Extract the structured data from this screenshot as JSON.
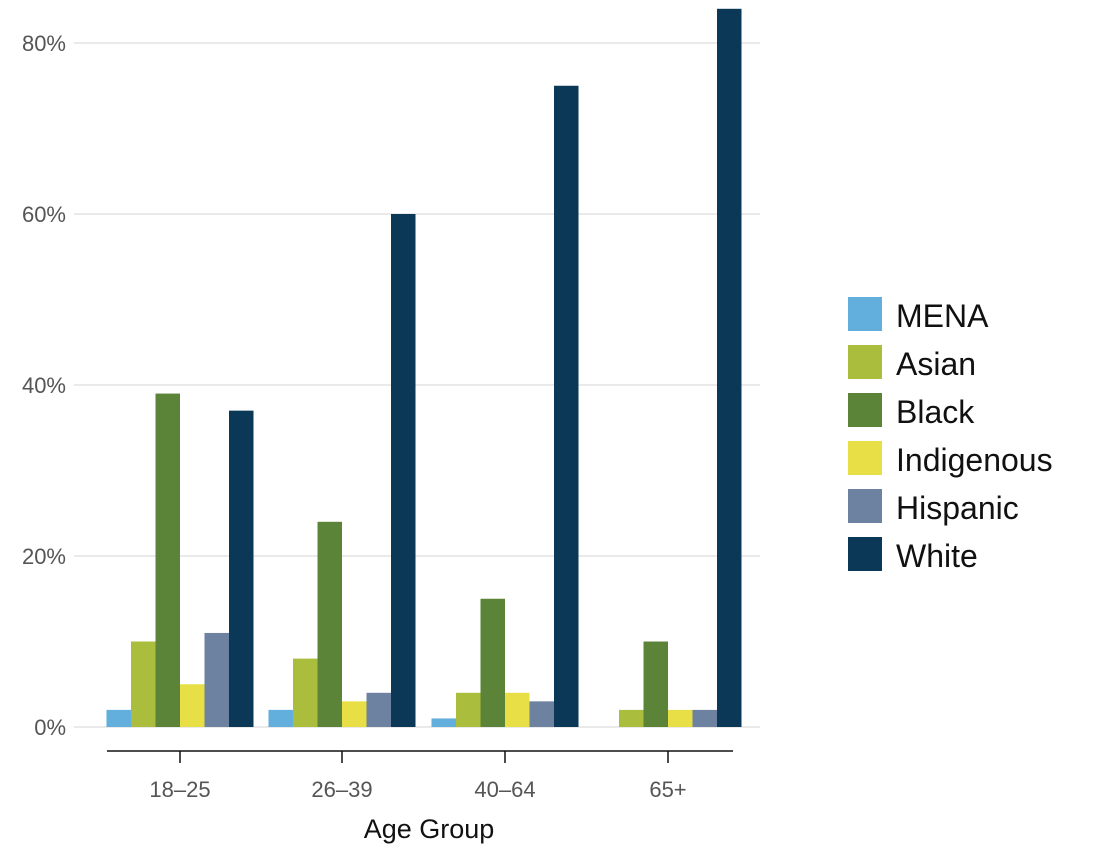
{
  "chart_data": {
    "type": "bar",
    "title": "",
    "xlabel": "Age Group",
    "ylabel": "",
    "categories": [
      "18–25",
      "26–39",
      "40–64",
      "65+"
    ],
    "y_ticks": [
      0,
      20,
      40,
      60,
      80
    ],
    "y_tick_labels": [
      "0%",
      "20%",
      "40%",
      "60%",
      "80%"
    ],
    "ylim": [
      0,
      84
    ],
    "grid": "horizontal",
    "legend_position": "right",
    "series": [
      {
        "name": "MENA",
        "color": "#62aedc",
        "values": [
          2,
          2,
          1,
          0
        ]
      },
      {
        "name": "Asian",
        "color": "#aabd3c",
        "values": [
          10,
          8,
          4,
          2
        ]
      },
      {
        "name": "Black",
        "color": "#5c8438",
        "values": [
          39,
          24,
          15,
          10
        ]
      },
      {
        "name": "Indigenous",
        "color": "#e7df45",
        "values": [
          5,
          3,
          4,
          2
        ]
      },
      {
        "name": "Hispanic",
        "color": "#6c82a0",
        "values": [
          11,
          4,
          3,
          2
        ]
      },
      {
        "name": "White",
        "color": "#0a3856",
        "values": [
          37,
          60,
          75,
          84
        ]
      }
    ]
  }
}
